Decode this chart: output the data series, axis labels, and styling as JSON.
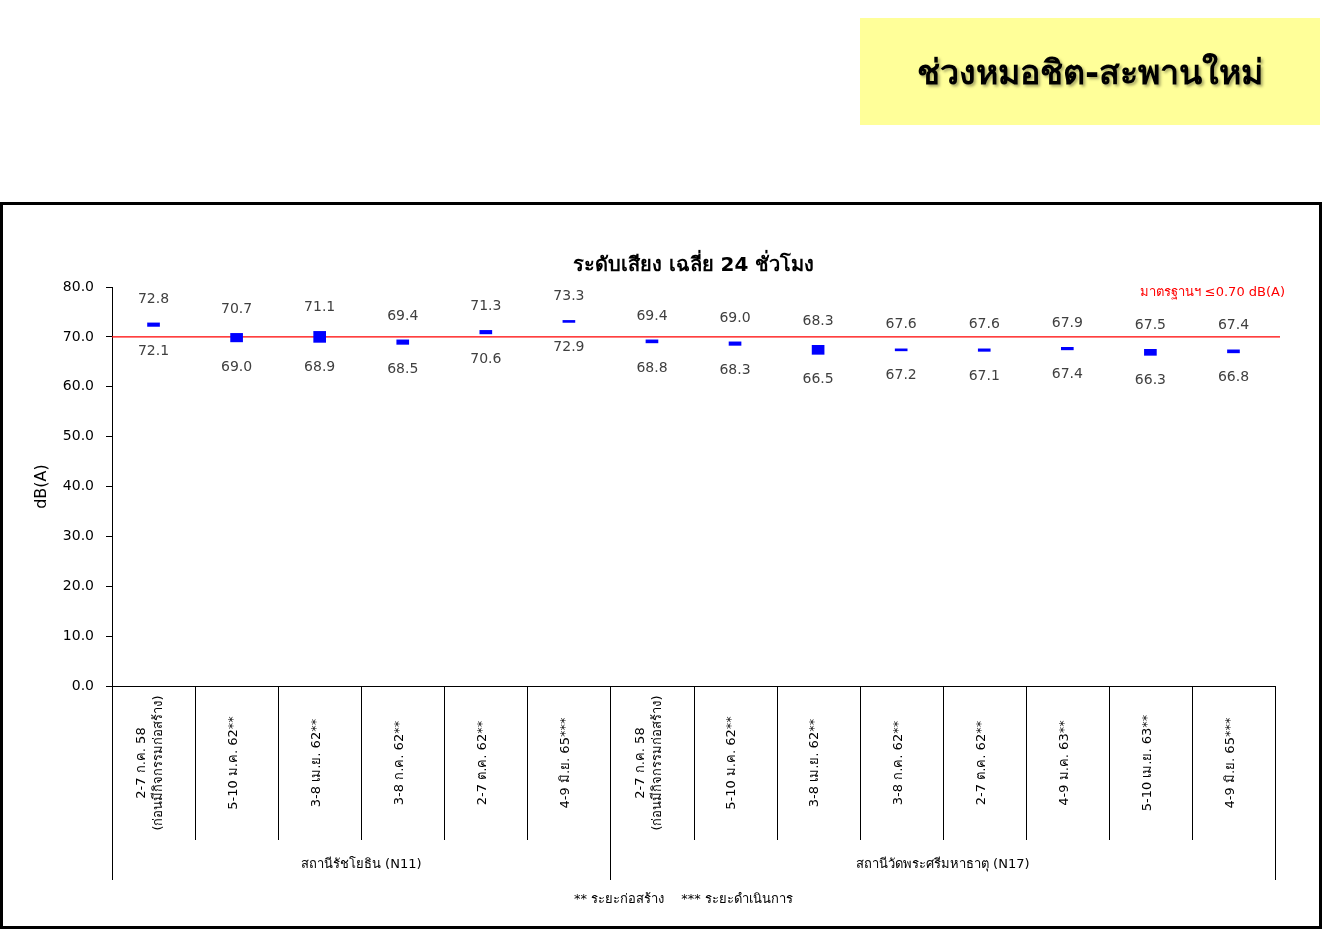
{
  "chart_data": {
    "type": "candlestick",
    "title": "ช่วงหมอชิต-สะพานใหม่",
    "subtitle": "ระดับเสียง เฉลี่ย 24 ชั่วโมง",
    "ylabel": "dB(A)",
    "categories": [
      "2-7 ก.ค. 58\n(ก่อนมีกิจกรรมก่อสร้าง)",
      "5-10 ม.ค. 62**",
      "3-8 เม.ย. 62**",
      "3-8 ก.ค. 62**",
      "2-7 ต.ค. 62**",
      "4-9 มิ.ย. 65***",
      "2-7 ก.ค. 58\n(ก่อนมีกิจกรรมก่อสร้าง)",
      "5-10 ม.ค. 62**",
      "3-8 เม.ย. 62**",
      "3-8 ก.ค. 62**",
      "2-7 ต.ค. 62**",
      "4-9 ม.ค. 63**",
      "5-10 เม.ย. 63**",
      "4-9 มิ.ย. 65***"
    ],
    "ohlc": [
      [
        72.8,
        72.8,
        72.1,
        72.1
      ],
      [
        70.7,
        70.7,
        69.0,
        69.0
      ],
      [
        71.1,
        71.1,
        68.9,
        68.9
      ],
      [
        69.4,
        69.4,
        68.5,
        68.5
      ],
      [
        71.3,
        71.3,
        70.6,
        70.6
      ],
      [
        73.3,
        73.3,
        72.9,
        72.9
      ],
      [
        69.4,
        69.4,
        68.8,
        68.8
      ],
      [
        69.0,
        69.0,
        68.3,
        68.3
      ],
      [
        68.3,
        68.3,
        66.5,
        66.5
      ],
      [
        67.6,
        67.6,
        67.2,
        67.2
      ],
      [
        67.6,
        67.6,
        67.1,
        67.1
      ],
      [
        67.9,
        67.9,
        67.4,
        67.4
      ],
      [
        67.5,
        67.5,
        66.3,
        66.3
      ],
      [
        67.4,
        67.4,
        66.8,
        66.8
      ]
    ],
    "color": "#0000ff",
    "ylim": [
      0,
      80
    ],
    "yticks": [
      {
        "value": 0,
        "label": "0.0"
      },
      {
        "value": 10,
        "label": "10.0"
      },
      {
        "value": 20,
        "label": "20.0"
      },
      {
        "value": 30,
        "label": "30.0"
      },
      {
        "value": 40,
        "label": "40.0"
      },
      {
        "value": 50,
        "label": "50.0"
      },
      {
        "value": 60,
        "label": "60.0"
      },
      {
        "value": 70,
        "label": "70.0"
      },
      {
        "value": 80,
        "label": "80.0"
      }
    ],
    "ref_lines": [
      {
        "axis": "y",
        "value": 70,
        "label": "มาตรฐานฯ ≤0.70 dB(A)",
        "color": "#ff0000"
      }
    ],
    "annotations": [
      "72.8",
      "72.1",
      "70.7",
      "69.0",
      "71.1",
      "68.9",
      "69.4",
      "68.5",
      "71.3",
      "70.6",
      "73.3",
      "72.9",
      "69.4",
      "68.8",
      "69.0",
      "68.3",
      "68.3",
      "66.5",
      "67.6",
      "67.2",
      "67.6",
      "67.1",
      "67.9",
      "67.4",
      "67.5",
      "66.3",
      "67.4",
      "66.8",
      "สถานีรัชโยธิน (N11)",
      "สถานีวัดพระศรีมหาธาตุ (N17)",
      "** ระยะก่อสร้าง",
      "*** ระยะดำเนินการ"
    ]
  }
}
